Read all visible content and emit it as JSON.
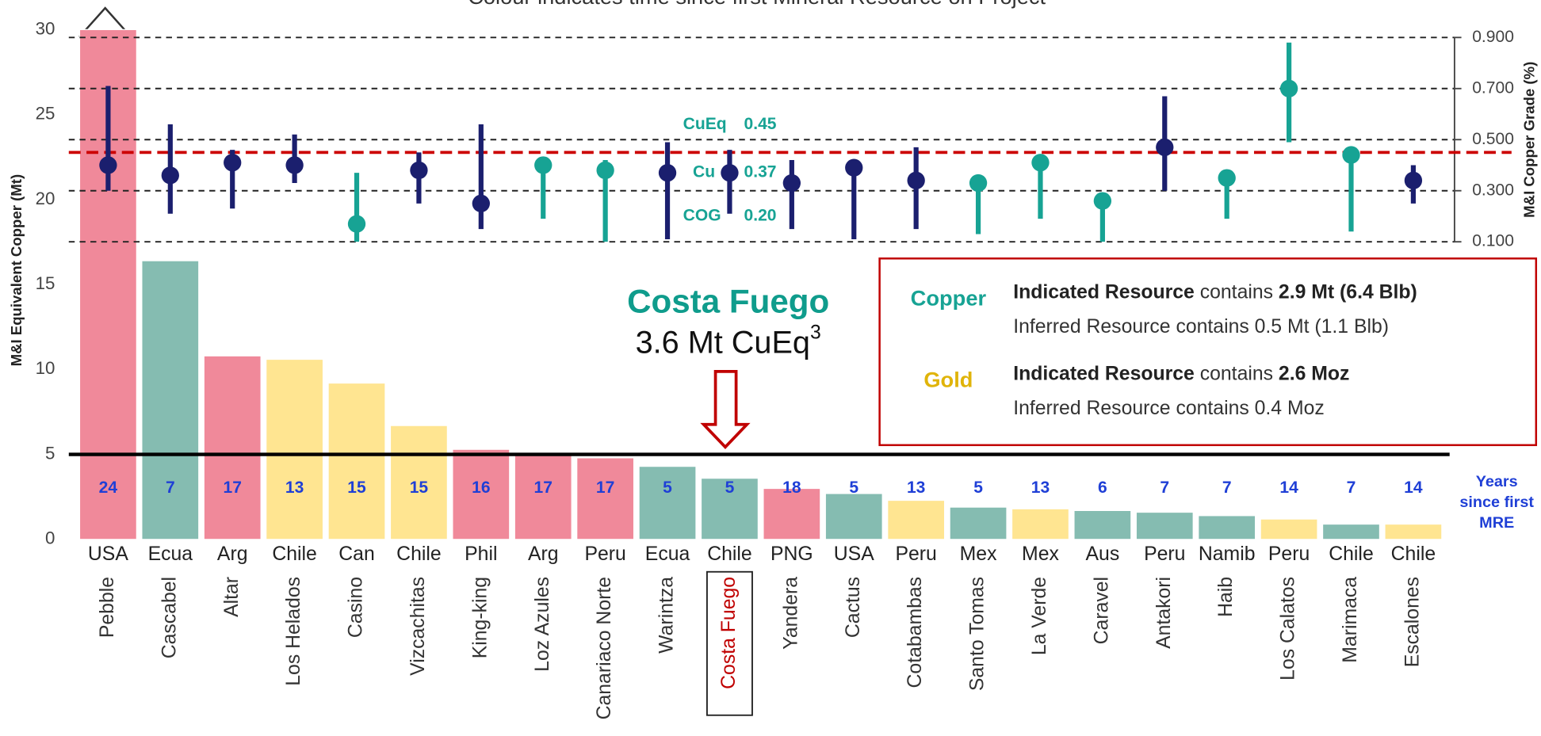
{
  "chart_data": {
    "type": "bar",
    "title": "Colour indicates time since first Mineral Resource on Project",
    "ylabel": "M&I Equivalent Copper (Mt)",
    "y2label": "M&I Copper Grade (%)",
    "ylim": [
      0,
      30
    ],
    "yticks": [
      0,
      5,
      10,
      15,
      20,
      25,
      30
    ],
    "y2lim": [
      0.1,
      0.9
    ],
    "y2ticks": [
      {
        "value": 0.1,
        "label": "0.100"
      },
      {
        "value": 0.3,
        "label": "0.300"
      },
      {
        "value": 0.5,
        "label": "0.500"
      },
      {
        "value": 0.7,
        "label": "0.700"
      },
      {
        "value": 0.9,
        "label": "0.900"
      }
    ],
    "grid": true,
    "hline": 5,
    "countries": [
      "USA",
      "Ecua",
      "Arg",
      "Chile",
      "Can",
      "Chile",
      "Phil",
      "Arg",
      "Peru",
      "Ecua",
      "Chile",
      "PNG",
      "USA",
      "Peru",
      "Mex",
      "Mex",
      "Aus",
      "Peru",
      "Namib",
      "Peru",
      "Chile",
      "Chile"
    ],
    "categories": [
      "Pebble",
      "Cascabel",
      "Altar",
      "Los Helados",
      "Casino",
      "Vizcachitas",
      "King-king",
      "Loz Azules",
      "Canariaco Norte",
      "Warintza",
      "Costa Fuego",
      "Yandera",
      "Cactus",
      "Cotabambas",
      "Santo Tomas",
      "La Verde",
      "Caravel",
      "Antakori",
      "Haib",
      "Los Calatos",
      "Marimaca",
      "Escalones"
    ],
    "highlight": "Costa Fuego",
    "years": [
      24,
      7,
      17,
      13,
      15,
      15,
      16,
      17,
      17,
      5,
      5,
      18,
      5,
      13,
      5,
      13,
      6,
      7,
      7,
      14,
      7,
      14
    ],
    "years_label": [
      "Years",
      "since first",
      "MRE"
    ],
    "series": [
      {
        "values": [
          30,
          16.4,
          10.8,
          10.6,
          9.2,
          6.7,
          5.3,
          5.0,
          4.8,
          4.3,
          3.6,
          3.0,
          2.7,
          2.3,
          1.9,
          1.8,
          1.7,
          1.6,
          1.4,
          1.2,
          0.9,
          0.9
        ],
        "colors": [
          "#f0899a",
          "#85bcb1",
          "#f0899a",
          "#ffe591",
          "#ffe591",
          "#ffe591",
          "#f0899a",
          "#f0899a",
          "#f0899a",
          "#85bcb1",
          "#85bcb1",
          "#f0899a",
          "#85bcb1",
          "#ffe591",
          "#85bcb1",
          "#ffe591",
          "#85bcb1",
          "#85bcb1",
          "#85bcb1",
          "#ffe591",
          "#85bcb1",
          "#ffe591"
        ]
      },
      {
        "axis": "y2",
        "values": [
          0.4,
          0.36,
          0.41,
          0.4,
          0.17,
          0.38,
          0.25,
          0.4,
          0.38,
          0.37,
          0.37,
          0.33,
          0.39,
          0.34,
          0.33,
          0.41,
          0.26,
          0.47,
          0.35,
          0.7,
          0.44,
          0.34
        ],
        "high": [
          0.71,
          0.56,
          0.46,
          0.52,
          0.37,
          0.45,
          0.56,
          0.4,
          0.42,
          0.49,
          0.46,
          0.42,
          0.39,
          0.47,
          0.33,
          0.44,
          0.26,
          0.67,
          0.35,
          0.88,
          0.44,
          0.4
        ],
        "low": [
          0.3,
          0.21,
          0.23,
          0.33,
          0.1,
          0.25,
          0.15,
          0.19,
          0.1,
          0.11,
          0.21,
          0.15,
          0.11,
          0.15,
          0.13,
          0.19,
          0.1,
          0.3,
          0.19,
          0.49,
          0.14,
          0.25
        ],
        "colors": [
          "#1b1f6e",
          "#1b1f6e",
          "#1b1f6e",
          "#1b1f6e",
          "#17a394",
          "#1b1f6e",
          "#1b1f6e",
          "#17a394",
          "#17a394",
          "#1b1f6e",
          "#1b1f6e",
          "#1b1f6e",
          "#1b1f6e",
          "#1b1f6e",
          "#17a394",
          "#17a394",
          "#17a394",
          "#1b1f6e",
          "#17a394",
          "#17a394",
          "#17a394",
          "#1b1f6e"
        ]
      }
    ],
    "grade_lines": [
      {
        "label": "CuEq",
        "value": 0.45,
        "color": "#cc0000"
      },
      {
        "label": "Cu",
        "value": 0.37
      },
      {
        "label": "COG",
        "value": 0.2,
        "value_label": "0.20"
      }
    ],
    "callout": {
      "title": "Costa Fuego",
      "text": "3.6 Mt CuEq",
      "sup": "3"
    },
    "box": [
      {
        "label": "Copper",
        "color": "#17a394",
        "lines": [
          [
            {
              "text": "Indicated Resource",
              "bold": true
            },
            {
              "text": " contains "
            },
            {
              "text": "2.9 Mt (6.4 Blb)",
              "bold": true
            }
          ],
          [
            {
              "text": "Inferred Resource contains 0.5 Mt (1.1 Blb)"
            }
          ]
        ]
      },
      {
        "label": "Gold",
        "color": "#e0b40a",
        "lines": [
          [
            {
              "text": "Indicated Resource",
              "bold": true
            },
            {
              "text": " contains "
            },
            {
              "text": "2.6 Moz",
              "bold": true
            }
          ],
          [
            {
              "text": "Inferred Resource contains 0.4 Moz"
            }
          ]
        ]
      }
    ]
  }
}
